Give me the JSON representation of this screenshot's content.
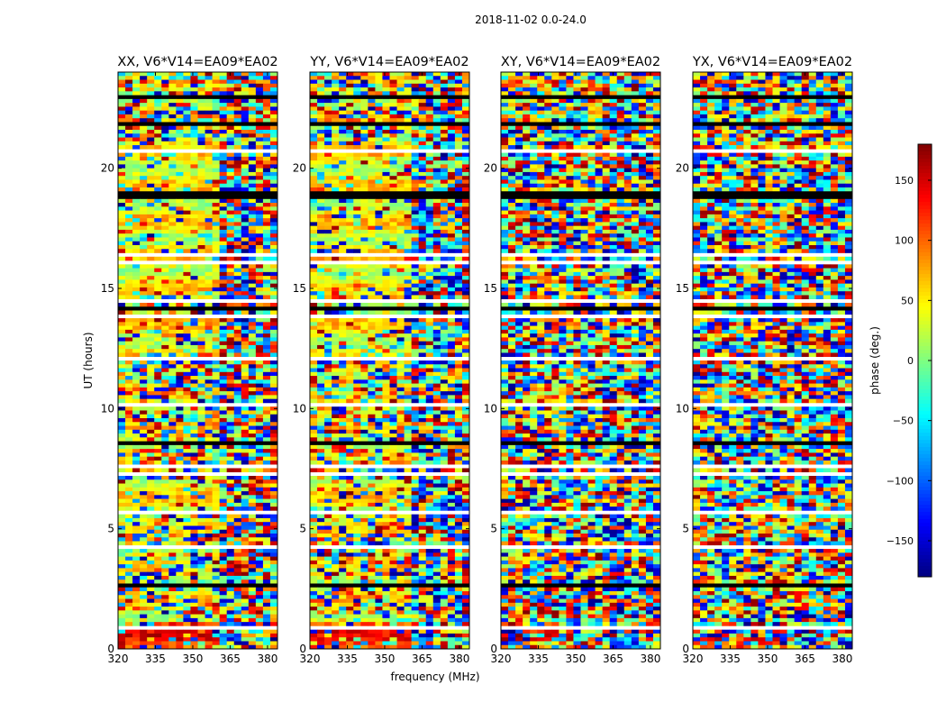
{
  "chart_data": {
    "type": "heatmap",
    "title": "2018-11-02 0.0-24.0",
    "xlabel": "frequency (MHz)",
    "ylabel": "UT (hours)",
    "xlim": [
      320,
      384
    ],
    "ylim": [
      0,
      24
    ],
    "xticks": [
      320,
      335,
      350,
      365,
      380
    ],
    "yticks": [
      0,
      5,
      10,
      15,
      20
    ],
    "panels": [
      {
        "name": "XX",
        "title": "XX, V6*V14=EA09*EA02"
      },
      {
        "name": "YY",
        "title": "YY, V6*V14=EA09*EA02"
      },
      {
        "name": "XY",
        "title": "XY, V6*V14=EA09*EA02"
      },
      {
        "name": "YX",
        "title": "YX, V6*V14=EA09*EA02"
      }
    ],
    "colorbar": {
      "label": "phase (deg.)",
      "range": [
        -180,
        180
      ],
      "ticks": [
        150,
        100,
        50,
        0,
        -50,
        -100,
        -150
      ],
      "tick_labels": [
        "150",
        "100",
        "50",
        "0",
        "−50",
        "−100",
        "−150"
      ],
      "colormap": "jet"
    }
  }
}
